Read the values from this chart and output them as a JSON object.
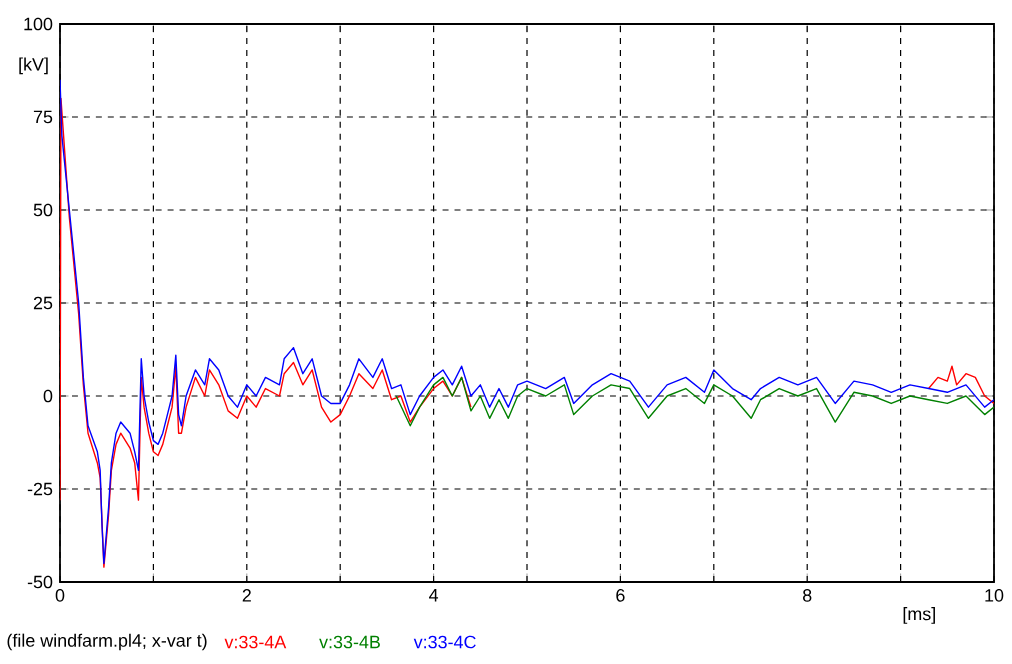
{
  "chart_data": {
    "type": "line",
    "xlabel": "[ms]",
    "ylabel": "[kV]",
    "annotations": [
      "(file windfarm.pl4; x-var t)"
    ],
    "xlim": [
      0,
      10
    ],
    "ylim": [
      -50,
      100
    ],
    "xticks": [
      0,
      {
        "value": 1,
        "label": null
      },
      2,
      {
        "value": 3,
        "label": null
      },
      4,
      {
        "value": 5,
        "label": null
      },
      6,
      {
        "value": 7,
        "label": null
      },
      8,
      {
        "value": 9,
        "label": null
      },
      10
    ],
    "yticks": [
      -50,
      -25,
      0,
      25,
      50,
      75,
      100
    ],
    "grid": true,
    "legend": "bottom",
    "marker": "none",
    "line_style": "solid",
    "series": [
      {
        "name": "v:33-4A",
        "color": "#ff0000",
        "x": [
          0,
          0.01,
          0.1,
          0.2,
          0.25,
          0.3,
          0.4,
          0.43,
          0.47,
          0.52,
          0.55,
          0.6,
          0.65,
          0.75,
          0.8,
          0.84,
          0.87,
          0.9,
          0.95,
          1.0,
          1.05,
          1.1,
          1.15,
          1.2,
          1.24,
          1.27,
          1.3,
          1.35,
          1.45,
          1.55,
          1.6,
          1.7,
          1.8,
          1.9,
          2.0,
          2.1,
          2.2,
          2.35,
          2.4,
          2.5,
          2.6,
          2.7,
          2.8,
          2.9,
          3.0,
          3.1,
          3.2,
          3.35,
          3.45,
          3.55,
          3.65,
          3.75,
          3.85,
          4.0,
          4.1,
          4.2,
          4.3,
          4.4,
          6.0,
          9.3,
          9.4,
          9.5,
          9.55,
          9.6,
          9.7,
          9.8,
          9.9,
          10
        ],
        "values": [
          -28,
          80,
          48,
          22,
          3,
          -10,
          -18,
          -22,
          -46,
          -32,
          -20,
          -13,
          -10,
          -14,
          -18,
          -28,
          5,
          -3,
          -10,
          -15,
          -16,
          -13,
          -8,
          -3,
          8,
          -10,
          -10,
          -3,
          5,
          0,
          7,
          3,
          -4,
          -6,
          0,
          -3,
          2,
          0,
          6,
          9,
          3,
          7,
          -3,
          -7,
          -5,
          0,
          6,
          2,
          7,
          -1,
          0,
          -7,
          -3,
          2,
          4,
          0,
          5,
          -3,
          null,
          2,
          5,
          4,
          8,
          3,
          6,
          5,
          0,
          -2
        ]
      },
      {
        "name": "v:33-4B",
        "color": "#008000",
        "x": [
          3.6,
          3.75,
          3.85,
          4.0,
          4.1,
          4.2,
          4.3,
          4.4,
          4.5,
          4.6,
          4.7,
          4.8,
          4.9,
          5.0,
          5.2,
          5.4,
          5.5,
          5.7,
          5.9,
          6.1,
          6.3,
          6.5,
          6.7,
          6.9,
          7.0,
          7.2,
          7.4,
          7.5,
          7.7,
          7.9,
          8.1,
          8.3,
          8.5,
          8.7,
          8.9,
          9.1,
          9.3,
          9.5,
          9.7,
          9.9,
          10
        ],
        "values": [
          0,
          -8,
          -3,
          3,
          5,
          0,
          5,
          -4,
          0,
          -6,
          -1,
          -6,
          0,
          2,
          0,
          3,
          -5,
          0,
          3,
          2,
          -6,
          0,
          2,
          -2,
          3,
          0,
          -6,
          -1,
          2,
          0,
          2,
          -7,
          1,
          0,
          -2,
          0,
          -1,
          -2,
          0,
          -5,
          -3
        ]
      },
      {
        "name": "v:33-4C",
        "color": "#0000ff",
        "x": [
          0,
          0.02,
          0.1,
          0.2,
          0.25,
          0.3,
          0.4,
          0.43,
          0.45,
          0.47,
          0.52,
          0.55,
          0.6,
          0.65,
          0.75,
          0.8,
          0.84,
          0.87,
          0.9,
          0.95,
          1.0,
          1.05,
          1.1,
          1.15,
          1.2,
          1.24,
          1.27,
          1.3,
          1.35,
          1.45,
          1.55,
          1.6,
          1.7,
          1.8,
          1.9,
          2.0,
          2.1,
          2.2,
          2.35,
          2.4,
          2.5,
          2.6,
          2.7,
          2.8,
          2.9,
          3.0,
          3.1,
          3.2,
          3.35,
          3.45,
          3.55,
          3.65,
          3.75,
          3.85,
          4.0,
          4.1,
          4.2,
          4.3,
          4.4,
          4.5,
          4.6,
          4.7,
          4.8,
          4.9,
          5.0,
          5.2,
          5.4,
          5.5,
          5.7,
          5.9,
          6.1,
          6.3,
          6.5,
          6.7,
          6.9,
          7.0,
          7.2,
          7.4,
          7.5,
          7.7,
          7.9,
          8.1,
          8.3,
          8.5,
          8.7,
          8.9,
          9.1,
          9.3,
          9.5,
          9.7,
          9.9,
          10
        ],
        "values": [
          85,
          70,
          50,
          25,
          5,
          -8,
          -15,
          -20,
          -35,
          -45,
          -30,
          -18,
          -10,
          -7,
          -10,
          -15,
          -20,
          10,
          0,
          -7,
          -12,
          -13,
          -10,
          -5,
          0,
          11,
          -5,
          -8,
          0,
          7,
          3,
          10,
          7,
          0,
          -3,
          3,
          0,
          5,
          3,
          10,
          13,
          6,
          10,
          0,
          -2,
          -2,
          3,
          10,
          5,
          10,
          2,
          3,
          -5,
          0,
          5,
          7,
          3,
          8,
          0,
          3,
          -3,
          2,
          -3,
          3,
          4,
          2,
          5,
          -2,
          3,
          6,
          4,
          -3,
          3,
          5,
          1,
          7,
          2,
          -1,
          2,
          5,
          3,
          5,
          -2,
          4,
          3,
          1,
          3,
          2,
          1,
          3,
          -3,
          -1
        ]
      }
    ]
  }
}
